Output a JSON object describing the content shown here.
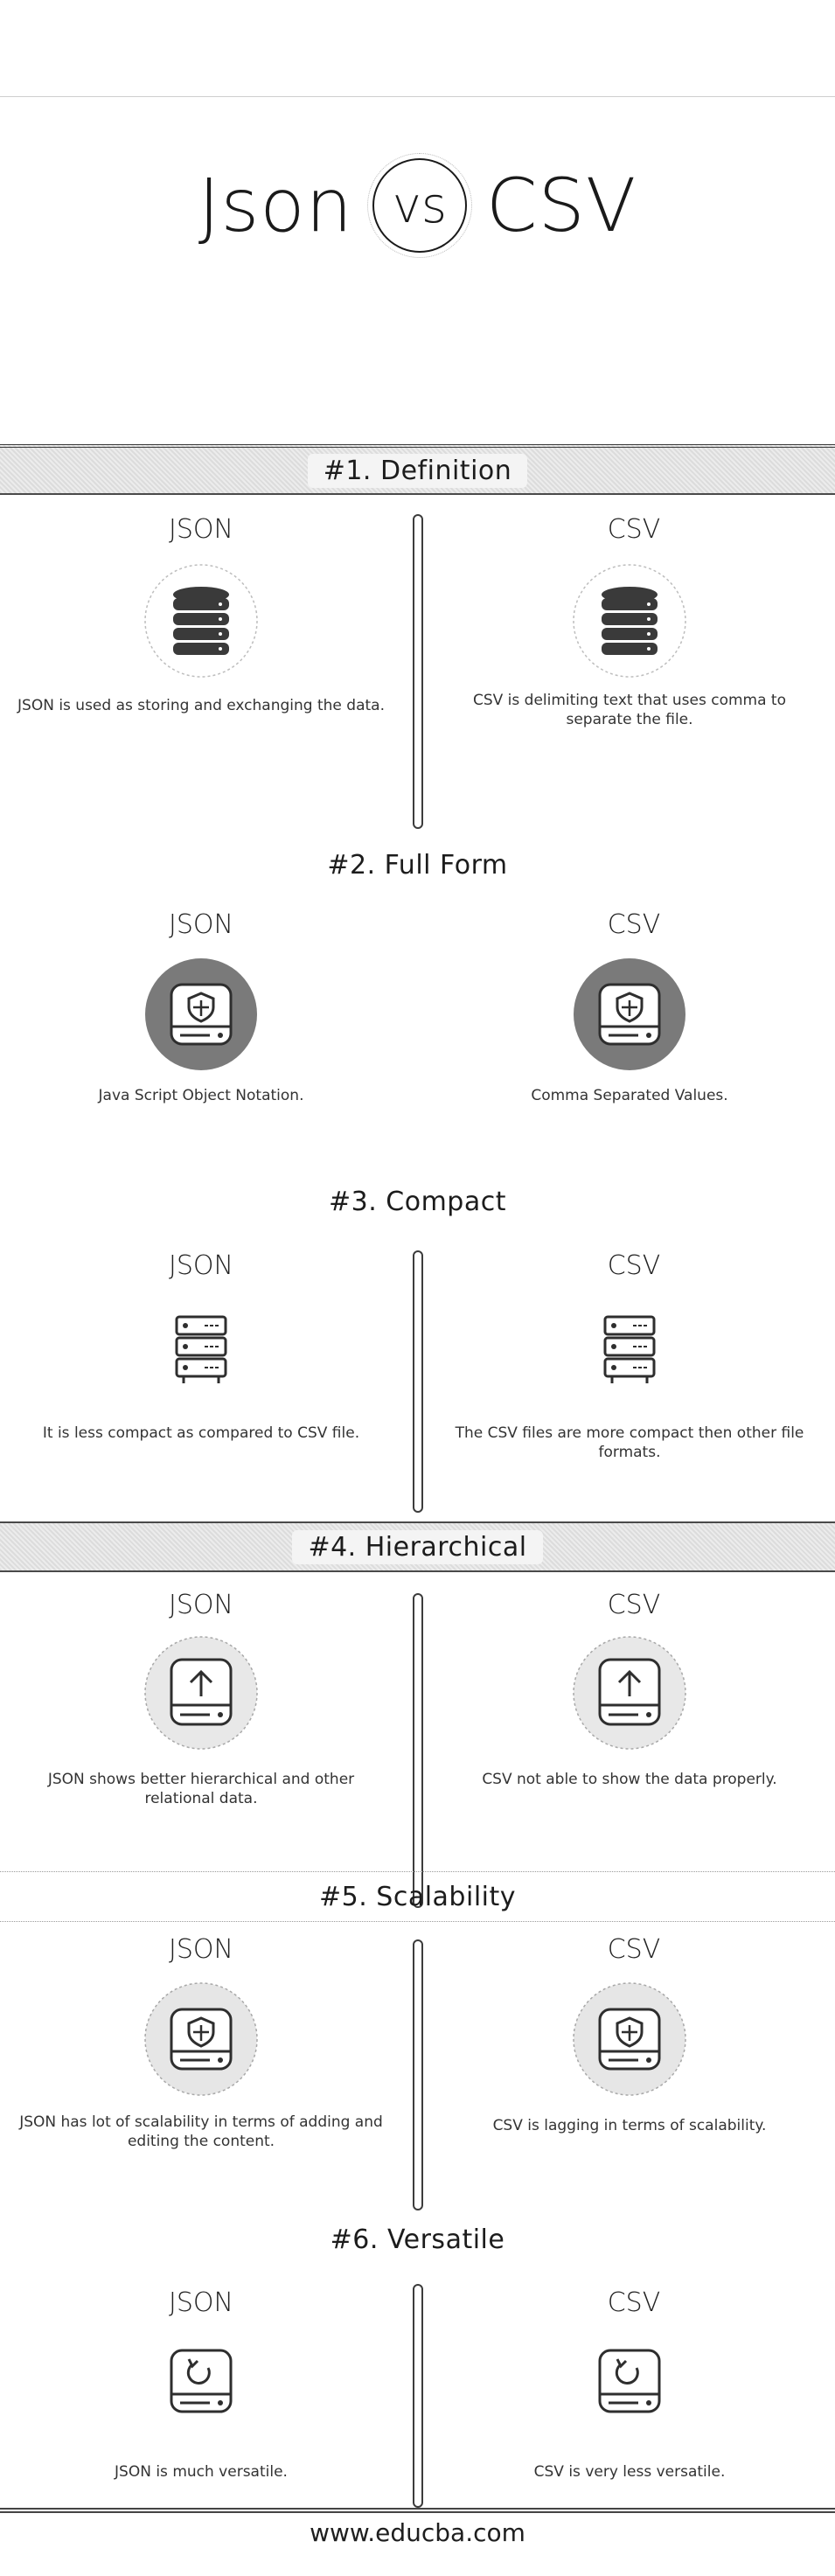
{
  "header": {
    "title_left": "Json",
    "title_vs": "vs",
    "title_right": "CSV"
  },
  "columns": {
    "left": "JSON",
    "right": "CSV"
  },
  "sections": [
    {
      "title": "#1. Definition",
      "left_icon": "database-icon",
      "right_icon": "database-icon",
      "left_text": "JSON is used as storing and exchanging the data.",
      "right_text": "CSV is delimiting text that uses comma to separate the file."
    },
    {
      "title": "#2. Full Form",
      "left_icon": "shield-drive-icon",
      "right_icon": "shield-drive-icon",
      "left_text": "Java Script Object Notation.",
      "right_text": "Comma Separated Values."
    },
    {
      "title": "#3. Compact",
      "left_icon": "server-rack-icon",
      "right_icon": "server-rack-icon",
      "left_text": "It is less compact as compared to CSV file.",
      "right_text": "The CSV files are more compact then other file formats."
    },
    {
      "title": "#4. Hierarchical",
      "left_icon": "upload-drive-icon",
      "right_icon": "upload-drive-icon",
      "left_text": "JSON shows better hierarchical and other relational data.",
      "right_text": "CSV not able to show the data properly."
    },
    {
      "title": "#5. Scalability",
      "left_icon": "shield-drive-icon",
      "right_icon": "shield-drive-icon",
      "left_text": "JSON has lot of scalability in terms of adding and editing the content.",
      "right_text": "CSV is lagging in terms of scalability."
    },
    {
      "title": "#6. Versatile",
      "left_icon": "sync-drive-icon",
      "right_icon": "sync-drive-icon",
      "left_text": "JSON is much versatile.",
      "right_text": "CSV is very less versatile."
    }
  ],
  "footer": {
    "site": "www.educba.com"
  },
  "colors": {
    "text": "#222222",
    "band_bg": "#e4e4e4",
    "icon_gray": "#6e6e6e",
    "icon_dark": "#333333"
  }
}
